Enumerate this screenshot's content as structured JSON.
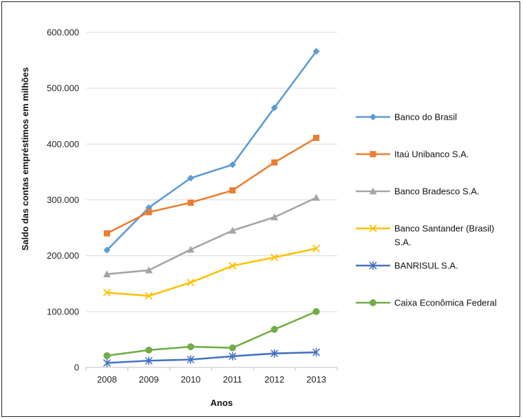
{
  "chart_data": {
    "type": "line",
    "title": "",
    "xlabel": "Anos",
    "ylabel": "Saldo das contas empréstimos em milhões",
    "x": [
      "2008",
      "2009",
      "2010",
      "2011",
      "2012",
      "2013"
    ],
    "ylim": [
      0,
      600000
    ],
    "yticks": [
      0,
      100000,
      200000,
      300000,
      400000,
      500000,
      600000
    ],
    "ytick_labels": [
      "0",
      "100.000",
      "200.000",
      "300.000",
      "400.000",
      "500.000",
      "600.000"
    ],
    "grid": "horizontal",
    "legend_position": "right",
    "series": [
      {
        "name": "Banco do Brasil",
        "color": "#5B9BD5",
        "marker": "diamond",
        "values": [
          210000,
          286000,
          339000,
          363000,
          465000,
          566000
        ]
      },
      {
        "name": "Itaú Unibanco S.A.",
        "color": "#ED7D31",
        "marker": "square",
        "values": [
          240000,
          278000,
          295000,
          317000,
          367000,
          411000
        ]
      },
      {
        "name": "Banco Bradesco S.A.",
        "color": "#A5A5A5",
        "marker": "triangle",
        "values": [
          167000,
          174000,
          211000,
          245000,
          269000,
          304000
        ]
      },
      {
        "name": "Banco Santander (Brasil) S.A.",
        "legend_lines": [
          "Banco Santander (Brasil)",
          "S.A."
        ],
        "color": "#FFC000",
        "marker": "x",
        "values": [
          134000,
          128000,
          152000,
          182000,
          197000,
          213000
        ]
      },
      {
        "name": "BANRISUL S.A.",
        "color": "#4472C4",
        "marker": "star",
        "values": [
          8000,
          12000,
          14000,
          20000,
          25000,
          27000
        ]
      },
      {
        "name": "Caixa Econômica Federal",
        "color": "#70AD47",
        "marker": "circle",
        "values": [
          21000,
          31000,
          37000,
          35000,
          68000,
          100000
        ]
      }
    ]
  }
}
